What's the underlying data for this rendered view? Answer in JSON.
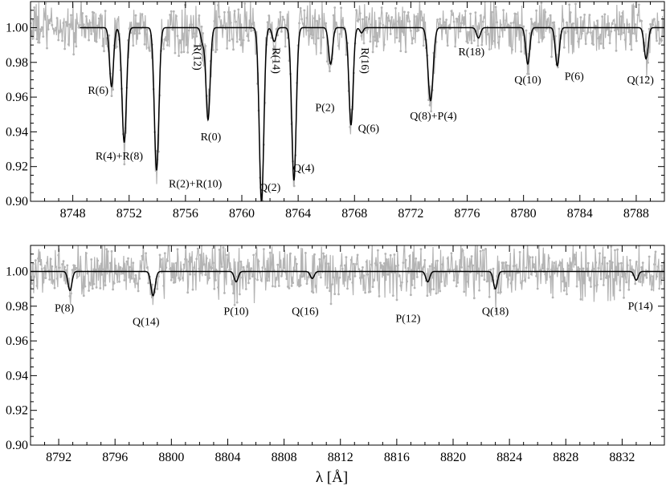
{
  "chart_data": [
    {
      "type": "line",
      "panel": "top",
      "xlim": [
        8745,
        8790
      ],
      "ylim": [
        0.9,
        1.015
      ],
      "xticks": [
        8748,
        8752,
        8756,
        8760,
        8764,
        8768,
        8772,
        8776,
        8780,
        8784,
        8788
      ],
      "yticks": [
        0.9,
        0.92,
        0.94,
        0.96,
        0.98,
        1.0
      ],
      "xtick_labels": [
        "8748",
        "8752",
        "8756",
        "8760",
        "8764",
        "8768",
        "8772",
        "8776",
        "8780",
        "8784",
        "8788"
      ],
      "ytick_labels": [
        "0.90",
        "0.92",
        "0.94",
        "0.96",
        "0.98",
        "1.00"
      ],
      "model_start": 8748.5,
      "series": [
        {
          "style": "observed",
          "color": "#b4b4b4",
          "noise": 0.007,
          "x_start": 8745.0
        },
        {
          "style": "model",
          "color": "#000000"
        }
      ],
      "lines": [
        {
          "center": 8750.75,
          "depth": 0.034,
          "width": 0.14,
          "label": "R(6)",
          "lx": 8749.8,
          "ly": 0.962,
          "rot": 0
        },
        {
          "center": 8751.65,
          "depth": 0.066,
          "width": 0.16,
          "label": "R(4)+R(8)",
          "lx": 8751.3,
          "ly": 0.924,
          "rot": 0
        },
        {
          "center": 8753.95,
          "depth": 0.082,
          "width": 0.16,
          "label": "R(2)+R(10)",
          "lx": 8756.7,
          "ly": 0.908,
          "rot": 0
        },
        {
          "center": 8757.2,
          "depth": 0.008,
          "width": 0.12,
          "label": "R(12)",
          "lx": 8756.6,
          "ly": 0.983,
          "rot": 90
        },
        {
          "center": 8757.6,
          "depth": 0.053,
          "width": 0.15,
          "label": "R(0)",
          "lx": 8757.8,
          "ly": 0.935,
          "rot": 0
        },
        {
          "center": 8761.4,
          "depth": 0.1,
          "width": 0.16,
          "label": "Q(2)",
          "lx": 8762.0,
          "ly": 0.906,
          "rot": 0
        },
        {
          "center": 8762.3,
          "depth": 0.008,
          "width": 0.14,
          "label": "R(14)",
          "lx": 8762.2,
          "ly": 0.981,
          "rot": 90
        },
        {
          "center": 8763.7,
          "depth": 0.088,
          "width": 0.16,
          "label": "Q(4)",
          "lx": 8764.4,
          "ly": 0.917,
          "rot": 0
        },
        {
          "center": 8766.3,
          "depth": 0.021,
          "width": 0.14,
          "label": "P(2)",
          "lx": 8765.9,
          "ly": 0.952,
          "rot": 0
        },
        {
          "center": 8767.75,
          "depth": 0.056,
          "width": 0.15,
          "label": "Q(6)",
          "lx": 8769.0,
          "ly": 0.94,
          "rot": 0
        },
        {
          "center": 8768.5,
          "depth": 0.003,
          "width": 0.12,
          "label": "R(16)",
          "lx": 8768.5,
          "ly": 0.981,
          "rot": 90
        },
        {
          "center": 8773.4,
          "depth": 0.042,
          "width": 0.18,
          "label": "Q(8)+P(4)",
          "lx": 8773.6,
          "ly": 0.947,
          "rot": 0
        },
        {
          "center": 8776.8,
          "depth": 0.006,
          "width": 0.14,
          "label": "R(18)",
          "lx": 8776.3,
          "ly": 0.984,
          "rot": 0
        },
        {
          "center": 8780.3,
          "depth": 0.021,
          "width": 0.14,
          "label": "Q(10)",
          "lx": 8780.3,
          "ly": 0.968,
          "rot": 0
        },
        {
          "center": 8782.4,
          "depth": 0.022,
          "width": 0.14,
          "label": "P(6)",
          "lx": 8783.6,
          "ly": 0.97,
          "rot": 0
        },
        {
          "center": 8788.7,
          "depth": 0.018,
          "width": 0.14,
          "label": "Q(12)",
          "lx": 8788.3,
          "ly": 0.968,
          "rot": 0
        }
      ]
    },
    {
      "type": "line",
      "panel": "bottom",
      "xlim": [
        8790,
        8835
      ],
      "ylim": [
        0.9,
        1.015
      ],
      "xlabel": "λ [Å]",
      "xticks": [
        8792,
        8796,
        8800,
        8804,
        8808,
        8812,
        8816,
        8820,
        8824,
        8828,
        8832
      ],
      "yticks": [
        0.9,
        0.92,
        0.94,
        0.96,
        0.98,
        1.0
      ],
      "xtick_labels": [
        "8792",
        "8796",
        "8800",
        "8804",
        "8808",
        "8812",
        "8816",
        "8820",
        "8824",
        "8828",
        "8832"
      ],
      "ytick_labels": [
        "0.90",
        "0.92",
        "0.94",
        "0.96",
        "0.98",
        "1.00"
      ],
      "model_start": 8790.0,
      "series": [
        {
          "style": "observed",
          "color": "#b4b4b4",
          "noise": 0.007,
          "x_start": 8790.0
        },
        {
          "style": "model",
          "color": "#000000"
        }
      ],
      "lines": [
        {
          "center": 8792.8,
          "depth": 0.011,
          "width": 0.14,
          "label": "P(8)",
          "lx": 8792.4,
          "ly": 0.977,
          "rot": 0
        },
        {
          "center": 8798.7,
          "depth": 0.014,
          "width": 0.15,
          "label": "Q(14)",
          "lx": 8798.2,
          "ly": 0.969,
          "rot": 0
        },
        {
          "center": 8804.6,
          "depth": 0.006,
          "width": 0.14,
          "label": "P(10)",
          "lx": 8804.6,
          "ly": 0.975,
          "rot": 0
        },
        {
          "center": 8810.0,
          "depth": 0.004,
          "width": 0.14,
          "label": "Q(16)",
          "lx": 8809.5,
          "ly": 0.975,
          "rot": 0
        },
        {
          "center": 8818.2,
          "depth": 0.006,
          "width": 0.14,
          "label": "P(12)",
          "lx": 8816.8,
          "ly": 0.971,
          "rot": 0
        },
        {
          "center": 8823.0,
          "depth": 0.01,
          "width": 0.14,
          "label": "Q(18)",
          "lx": 8823.0,
          "ly": 0.975,
          "rot": 0
        },
        {
          "center": 8833.0,
          "depth": 0.005,
          "width": 0.14,
          "label": "P(14)",
          "lx": 8833.3,
          "ly": 0.978,
          "rot": 0
        }
      ]
    }
  ]
}
